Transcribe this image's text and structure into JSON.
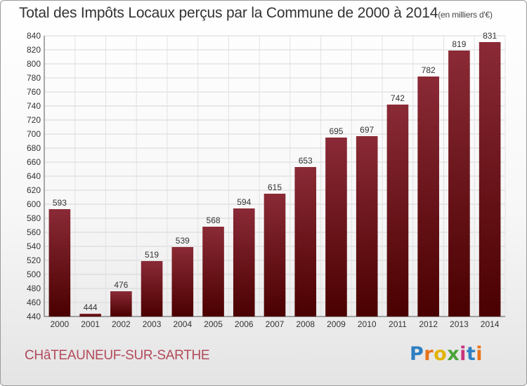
{
  "chart_data": {
    "type": "bar",
    "title": "Total des Impôts Locaux perçus par la Commune de 2000 à 2014",
    "subtitle": "(en milliers d'€)",
    "categories": [
      "2000",
      "2001",
      "2002",
      "2003",
      "2004",
      "2005",
      "2006",
      "2007",
      "2008",
      "2009",
      "2010",
      "2011",
      "2012",
      "2013",
      "2014"
    ],
    "values": [
      593,
      444,
      476,
      519,
      539,
      568,
      594,
      615,
      653,
      695,
      697,
      742,
      782,
      819,
      831
    ],
    "ylim": [
      440,
      840
    ],
    "ytick_step": 20,
    "grid": true,
    "bar_color_top": "#8a2a36",
    "bar_color_bottom": "#4a0000"
  },
  "footer": {
    "commune": "CHâTEAUNEUF-SUR-SARTHE",
    "logo_letters": [
      "P",
      "r",
      "o",
      "x",
      "i",
      "t",
      "i"
    ],
    "logo_colors": [
      "#2f7fc1",
      "#e8731a",
      "#e2b300",
      "#4aa53a",
      "#c8347c",
      "#2f7fc1",
      "#e8731a"
    ]
  }
}
